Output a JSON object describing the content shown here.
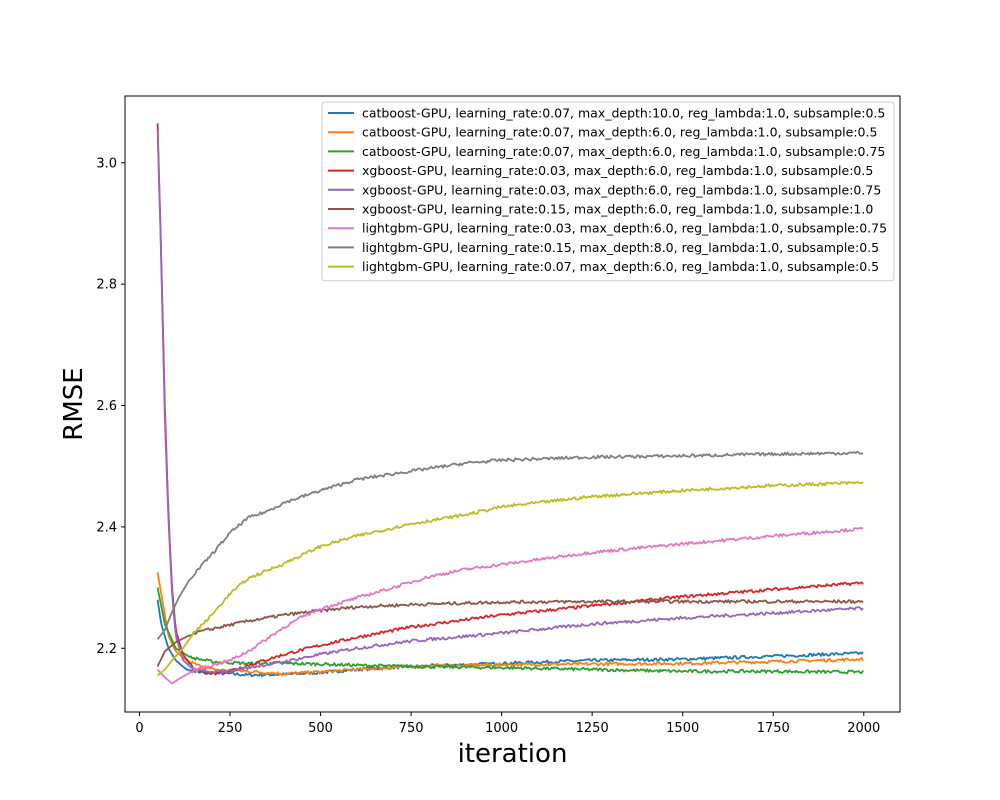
{
  "chart_data": {
    "type": "line",
    "title": "",
    "xlabel": "iteration",
    "ylabel": "RMSE",
    "xlim": [
      -40,
      2100
    ],
    "ylim": [
      2.095,
      3.11
    ],
    "xticks": [
      0,
      250,
      500,
      750,
      1000,
      1250,
      1500,
      1750,
      2000
    ],
    "yticks": [
      2.2,
      2.4,
      2.6,
      2.8,
      3.0
    ],
    "xtick_labels": [
      "0",
      "250",
      "500",
      "750",
      "1000",
      "1250",
      "1500",
      "1750",
      "2000"
    ],
    "ytick_labels": [
      "2.2",
      "2.4",
      "2.6",
      "2.8",
      "3.0"
    ],
    "grid": false,
    "legend_position": "top-right",
    "series": [
      {
        "name": "catboost-GPU, learning_rate:0.07, max_depth:10.0, reg_lambda:1.0, subsample:0.5",
        "color": "#1f77b4",
        "points": [
          [
            50,
            2.28
          ],
          [
            60,
            2.24
          ],
          [
            80,
            2.2
          ],
          [
            100,
            2.18
          ],
          [
            130,
            2.165
          ],
          [
            170,
            2.16
          ],
          [
            250,
            2.158
          ],
          [
            300,
            2.156
          ],
          [
            400,
            2.157
          ],
          [
            500,
            2.16
          ],
          [
            600,
            2.165
          ],
          [
            750,
            2.17
          ],
          [
            1000,
            2.175
          ],
          [
            1250,
            2.18
          ],
          [
            1500,
            2.182
          ],
          [
            1750,
            2.187
          ],
          [
            2000,
            2.192
          ]
        ]
      },
      {
        "name": "catboost-GPU, learning_rate:0.07, max_depth:6.0, reg_lambda:1.0, subsample:0.5",
        "color": "#ff7f0e",
        "points": [
          [
            50,
            2.325
          ],
          [
            60,
            2.29
          ],
          [
            80,
            2.22
          ],
          [
            100,
            2.195
          ],
          [
            130,
            2.18
          ],
          [
            170,
            2.17
          ],
          [
            200,
            2.165
          ],
          [
            300,
            2.162
          ],
          [
            400,
            2.158
          ],
          [
            500,
            2.161
          ],
          [
            600,
            2.165
          ],
          [
            750,
            2.17
          ],
          [
            1000,
            2.173
          ],
          [
            1250,
            2.174
          ],
          [
            1500,
            2.175
          ],
          [
            1750,
            2.178
          ],
          [
            2000,
            2.182
          ]
        ]
      },
      {
        "name": "catboost-GPU, learning_rate:0.07, max_depth:6.0, reg_lambda:1.0, subsample:0.75",
        "color": "#2ca02c",
        "points": [
          [
            50,
            2.3
          ],
          [
            70,
            2.24
          ],
          [
            100,
            2.2
          ],
          [
            140,
            2.185
          ],
          [
            200,
            2.178
          ],
          [
            300,
            2.175
          ],
          [
            400,
            2.175
          ],
          [
            500,
            2.174
          ],
          [
            600,
            2.172
          ],
          [
            750,
            2.17
          ],
          [
            1000,
            2.168
          ],
          [
            1250,
            2.165
          ],
          [
            1500,
            2.162
          ],
          [
            1750,
            2.162
          ],
          [
            1900,
            2.161
          ],
          [
            2000,
            2.161
          ]
        ]
      },
      {
        "name": "xgboost-GPU, learning_rate:0.03, max_depth:6.0, reg_lambda:1.0, subsample:0.5",
        "color": "#d62728",
        "points": [
          [
            50,
            3.065
          ],
          [
            60,
            2.85
          ],
          [
            70,
            2.6
          ],
          [
            80,
            2.42
          ],
          [
            90,
            2.3
          ],
          [
            100,
            2.23
          ],
          [
            120,
            2.19
          ],
          [
            150,
            2.165
          ],
          [
            200,
            2.158
          ],
          [
            250,
            2.163
          ],
          [
            300,
            2.172
          ],
          [
            400,
            2.19
          ],
          [
            500,
            2.205
          ],
          [
            600,
            2.218
          ],
          [
            750,
            2.235
          ],
          [
            1000,
            2.255
          ],
          [
            1250,
            2.27
          ],
          [
            1500,
            2.285
          ],
          [
            1750,
            2.297
          ],
          [
            2000,
            2.308
          ]
        ]
      },
      {
        "name": "xgboost-GPU, learning_rate:0.03, max_depth:6.0, reg_lambda:1.0, subsample:0.75",
        "color": "#9467bd",
        "points": [
          [
            50,
            3.055
          ],
          [
            60,
            2.84
          ],
          [
            70,
            2.58
          ],
          [
            80,
            2.41
          ],
          [
            90,
            2.29
          ],
          [
            100,
            2.22
          ],
          [
            120,
            2.18
          ],
          [
            150,
            2.165
          ],
          [
            200,
            2.16
          ],
          [
            250,
            2.163
          ],
          [
            300,
            2.168
          ],
          [
            400,
            2.178
          ],
          [
            500,
            2.19
          ],
          [
            600,
            2.2
          ],
          [
            750,
            2.212
          ],
          [
            1000,
            2.225
          ],
          [
            1250,
            2.24
          ],
          [
            1500,
            2.25
          ],
          [
            1750,
            2.258
          ],
          [
            2000,
            2.266
          ]
        ]
      },
      {
        "name": "xgboost-GPU, learning_rate:0.15, max_depth:6.0, reg_lambda:1.0, subsample:1.0",
        "color": "#8c564b",
        "points": [
          [
            50,
            2.17
          ],
          [
            70,
            2.195
          ],
          [
            100,
            2.21
          ],
          [
            150,
            2.225
          ],
          [
            200,
            2.232
          ],
          [
            300,
            2.245
          ],
          [
            400,
            2.255
          ],
          [
            500,
            2.262
          ],
          [
            600,
            2.268
          ],
          [
            750,
            2.272
          ],
          [
            1000,
            2.276
          ],
          [
            1250,
            2.277
          ],
          [
            1500,
            2.277
          ],
          [
            1750,
            2.277
          ],
          [
            2000,
            2.277
          ]
        ]
      },
      {
        "name": "lightgbm-GPU, learning_rate:0.03, max_depth:6.0, reg_lambda:1.0, subsample:0.75",
        "color": "#e377c2",
        "points": [
          [
            50,
            2.165
          ],
          [
            70,
            2.152
          ],
          [
            90,
            2.142
          ],
          [
            110,
            2.15
          ],
          [
            140,
            2.16
          ],
          [
            170,
            2.168
          ],
          [
            200,
            2.172
          ],
          [
            250,
            2.18
          ],
          [
            300,
            2.195
          ],
          [
            350,
            2.215
          ],
          [
            400,
            2.235
          ],
          [
            450,
            2.252
          ],
          [
            500,
            2.265
          ],
          [
            600,
            2.283
          ],
          [
            700,
            2.3
          ],
          [
            800,
            2.318
          ],
          [
            900,
            2.33
          ],
          [
            1000,
            2.338
          ],
          [
            1250,
            2.358
          ],
          [
            1500,
            2.372
          ],
          [
            1750,
            2.385
          ],
          [
            2000,
            2.397
          ]
        ]
      },
      {
        "name": "lightgbm-GPU, learning_rate:0.15, max_depth:8.0, reg_lambda:1.0, subsample:0.5",
        "color": "#7f7f7f",
        "points": [
          [
            50,
            2.215
          ],
          [
            70,
            2.23
          ],
          [
            90,
            2.26
          ],
          [
            110,
            2.285
          ],
          [
            140,
            2.315
          ],
          [
            170,
            2.335
          ],
          [
            200,
            2.355
          ],
          [
            250,
            2.39
          ],
          [
            300,
            2.415
          ],
          [
            350,
            2.425
          ],
          [
            400,
            2.44
          ],
          [
            500,
            2.46
          ],
          [
            600,
            2.478
          ],
          [
            750,
            2.492
          ],
          [
            900,
            2.505
          ],
          [
            1000,
            2.51
          ],
          [
            1250,
            2.515
          ],
          [
            1500,
            2.517
          ],
          [
            1750,
            2.52
          ],
          [
            2000,
            2.522
          ]
        ]
      },
      {
        "name": "lightgbm-GPU, learning_rate:0.07, max_depth:6.0, reg_lambda:1.0, subsample:0.5",
        "color": "#bcbd22",
        "points": [
          [
            50,
            2.155
          ],
          [
            70,
            2.165
          ],
          [
            90,
            2.18
          ],
          [
            120,
            2.2
          ],
          [
            150,
            2.225
          ],
          [
            200,
            2.255
          ],
          [
            250,
            2.29
          ],
          [
            300,
            2.315
          ],
          [
            400,
            2.34
          ],
          [
            500,
            2.368
          ],
          [
            600,
            2.385
          ],
          [
            750,
            2.405
          ],
          [
            900,
            2.42
          ],
          [
            1000,
            2.433
          ],
          [
            1250,
            2.45
          ],
          [
            1500,
            2.46
          ],
          [
            1750,
            2.468
          ],
          [
            2000,
            2.473
          ]
        ]
      }
    ]
  }
}
